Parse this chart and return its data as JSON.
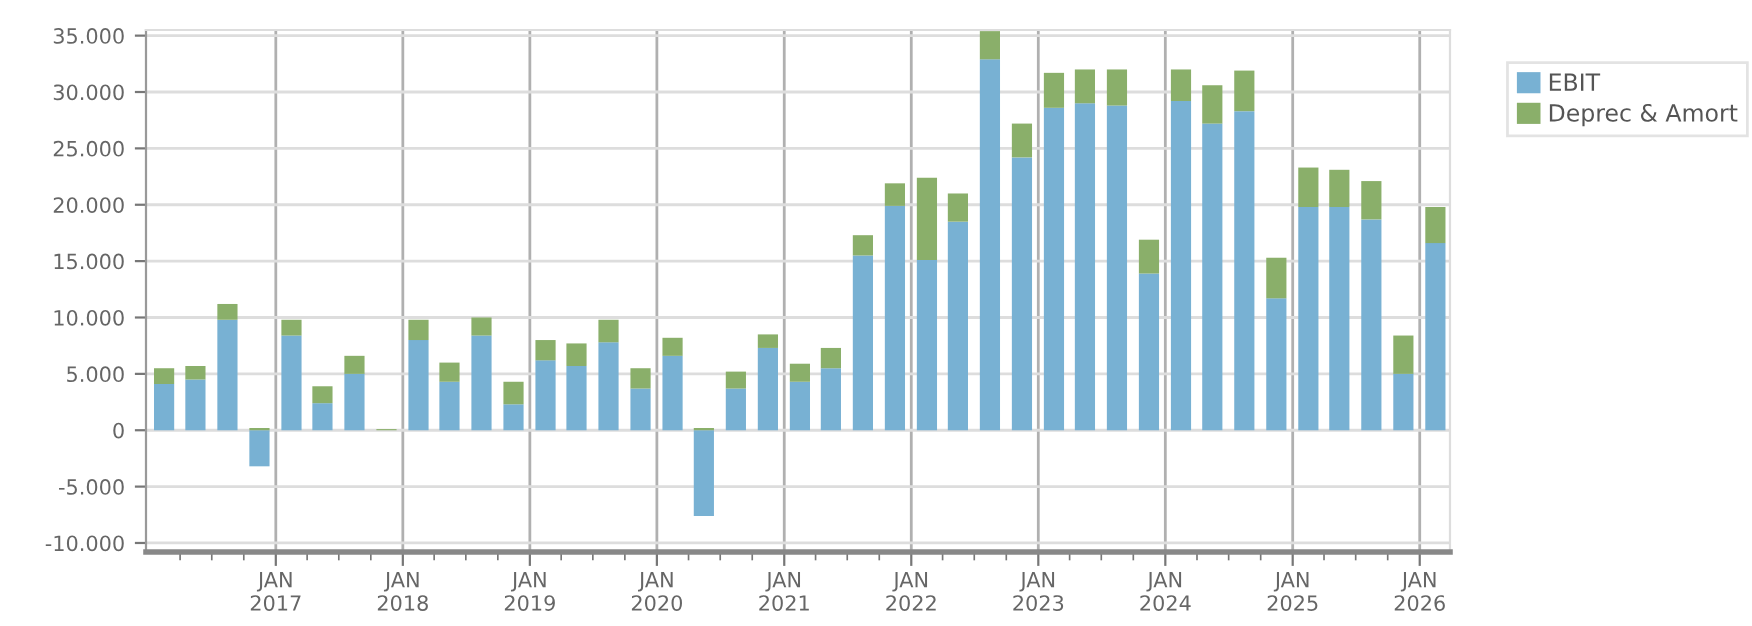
{
  "chart_data": {
    "type": "bar",
    "stacked": true,
    "x": [
      "2016-02-15",
      "2016-05-15",
      "2016-08-15",
      "2016-11-15",
      "2017-02-15",
      "2017-05-15",
      "2017-08-15",
      "2017-11-15",
      "2018-02-15",
      "2018-05-15",
      "2018-08-15",
      "2018-11-15",
      "2019-02-15",
      "2019-05-15",
      "2019-08-15",
      "2019-11-15",
      "2020-02-15",
      "2020-05-15",
      "2020-08-15",
      "2020-11-15",
      "2021-02-15",
      "2021-05-15",
      "2021-08-15",
      "2021-11-15",
      "2022-02-15",
      "2022-05-15",
      "2022-08-15",
      "2022-11-15",
      "2023-02-15",
      "2023-05-15",
      "2023-08-15",
      "2023-11-15",
      "2024-02-15",
      "2024-05-15",
      "2024-08-15",
      "2024-11-15",
      "2025-02-15",
      "2025-05-15",
      "2025-08-15",
      "2025-11-15",
      "2026-02-15"
    ],
    "series": [
      {
        "name": "EBIT",
        "color": "#78b1d3",
        "values": [
          4100,
          4500,
          9800,
          -3200,
          8400,
          2400,
          5000,
          0,
          8000,
          4300,
          8400,
          2300,
          6200,
          5700,
          7800,
          3700,
          6600,
          -7600,
          3700,
          7300,
          4300,
          5500,
          15500,
          19900,
          15100,
          18500,
          32900,
          24200,
          28600,
          29000,
          28800,
          13900,
          29200,
          27200,
          28300,
          11700,
          19800,
          19800,
          18700,
          5000,
          16600
        ]
      },
      {
        "name": "Deprec & Amort",
        "color": "#8aaf6a",
        "values": [
          1400,
          1200,
          1400,
          200,
          1400,
          1500,
          1600,
          100,
          1800,
          1700,
          1600,
          2000,
          1800,
          2000,
          2000,
          1800,
          1600,
          200,
          1500,
          1200,
          1600,
          1800,
          1800,
          2000,
          7300,
          2500,
          2500,
          3000,
          3100,
          3000,
          3200,
          3000,
          2800,
          3400,
          3600,
          3600,
          3500,
          3300,
          3400,
          3400,
          3200
        ]
      }
    ],
    "xlim": [
      "2015-12-25",
      "2026-03-29"
    ],
    "xticks": [
      {
        "value": "2016-04-01",
        "label": null
      },
      {
        "value": "2016-07-01",
        "label": null
      },
      {
        "value": "2016-10-01",
        "label": null
      },
      {
        "value": "2017-01-01",
        "label": "JAN\n2017"
      },
      {
        "value": "2017-04-01",
        "label": null
      },
      {
        "value": "2017-07-01",
        "label": null
      },
      {
        "value": "2017-10-01",
        "label": null
      },
      {
        "value": "2018-01-01",
        "label": "JAN\n2018"
      },
      {
        "value": "2018-04-01",
        "label": null
      },
      {
        "value": "2018-07-01",
        "label": null
      },
      {
        "value": "2018-10-01",
        "label": null
      },
      {
        "value": "2019-01-01",
        "label": "JAN\n2019"
      },
      {
        "value": "2019-04-01",
        "label": null
      },
      {
        "value": "2019-07-01",
        "label": null
      },
      {
        "value": "2019-10-01",
        "label": null
      },
      {
        "value": "2020-01-01",
        "label": "JAN\n2020"
      },
      {
        "value": "2020-04-01",
        "label": null
      },
      {
        "value": "2020-07-01",
        "label": null
      },
      {
        "value": "2020-10-01",
        "label": null
      },
      {
        "value": "2021-01-01",
        "label": "JAN\n2021"
      },
      {
        "value": "2021-04-01",
        "label": null
      },
      {
        "value": "2021-07-01",
        "label": null
      },
      {
        "value": "2021-10-01",
        "label": null
      },
      {
        "value": "2022-01-01",
        "label": "JAN\n2022"
      },
      {
        "value": "2022-04-01",
        "label": null
      },
      {
        "value": "2022-07-01",
        "label": null
      },
      {
        "value": "2022-10-01",
        "label": null
      },
      {
        "value": "2023-01-01",
        "label": "JAN\n2023"
      },
      {
        "value": "2023-04-01",
        "label": null
      },
      {
        "value": "2023-07-01",
        "label": null
      },
      {
        "value": "2023-10-01",
        "label": null
      },
      {
        "value": "2024-01-01",
        "label": "JAN\n2024"
      },
      {
        "value": "2024-04-01",
        "label": null
      },
      {
        "value": "2024-07-01",
        "label": null
      },
      {
        "value": "2024-10-01",
        "label": null
      },
      {
        "value": "2025-01-01",
        "label": "JAN\n2025"
      },
      {
        "value": "2025-04-01",
        "label": null
      },
      {
        "value": "2025-07-01",
        "label": null
      },
      {
        "value": "2025-10-01",
        "label": null
      },
      {
        "value": "2026-01-01",
        "label": "JAN\n2026"
      }
    ],
    "ylim": [
      -10800,
      35500
    ],
    "yticks": [
      {
        "value": -10000,
        "label": "-10.000"
      },
      {
        "value": -5000,
        "label": "-5.000"
      },
      0,
      {
        "value": 5000,
        "label": "5.000"
      },
      {
        "value": 10000,
        "label": "10.000"
      },
      {
        "value": 15000,
        "label": "15.000"
      },
      {
        "value": 20000,
        "label": "20.000"
      },
      {
        "value": 25000,
        "label": "25.000"
      },
      {
        "value": 30000,
        "label": "30.000"
      },
      {
        "value": 35000,
        "label": "35.000"
      }
    ],
    "grid": true,
    "legend": "top right"
  }
}
